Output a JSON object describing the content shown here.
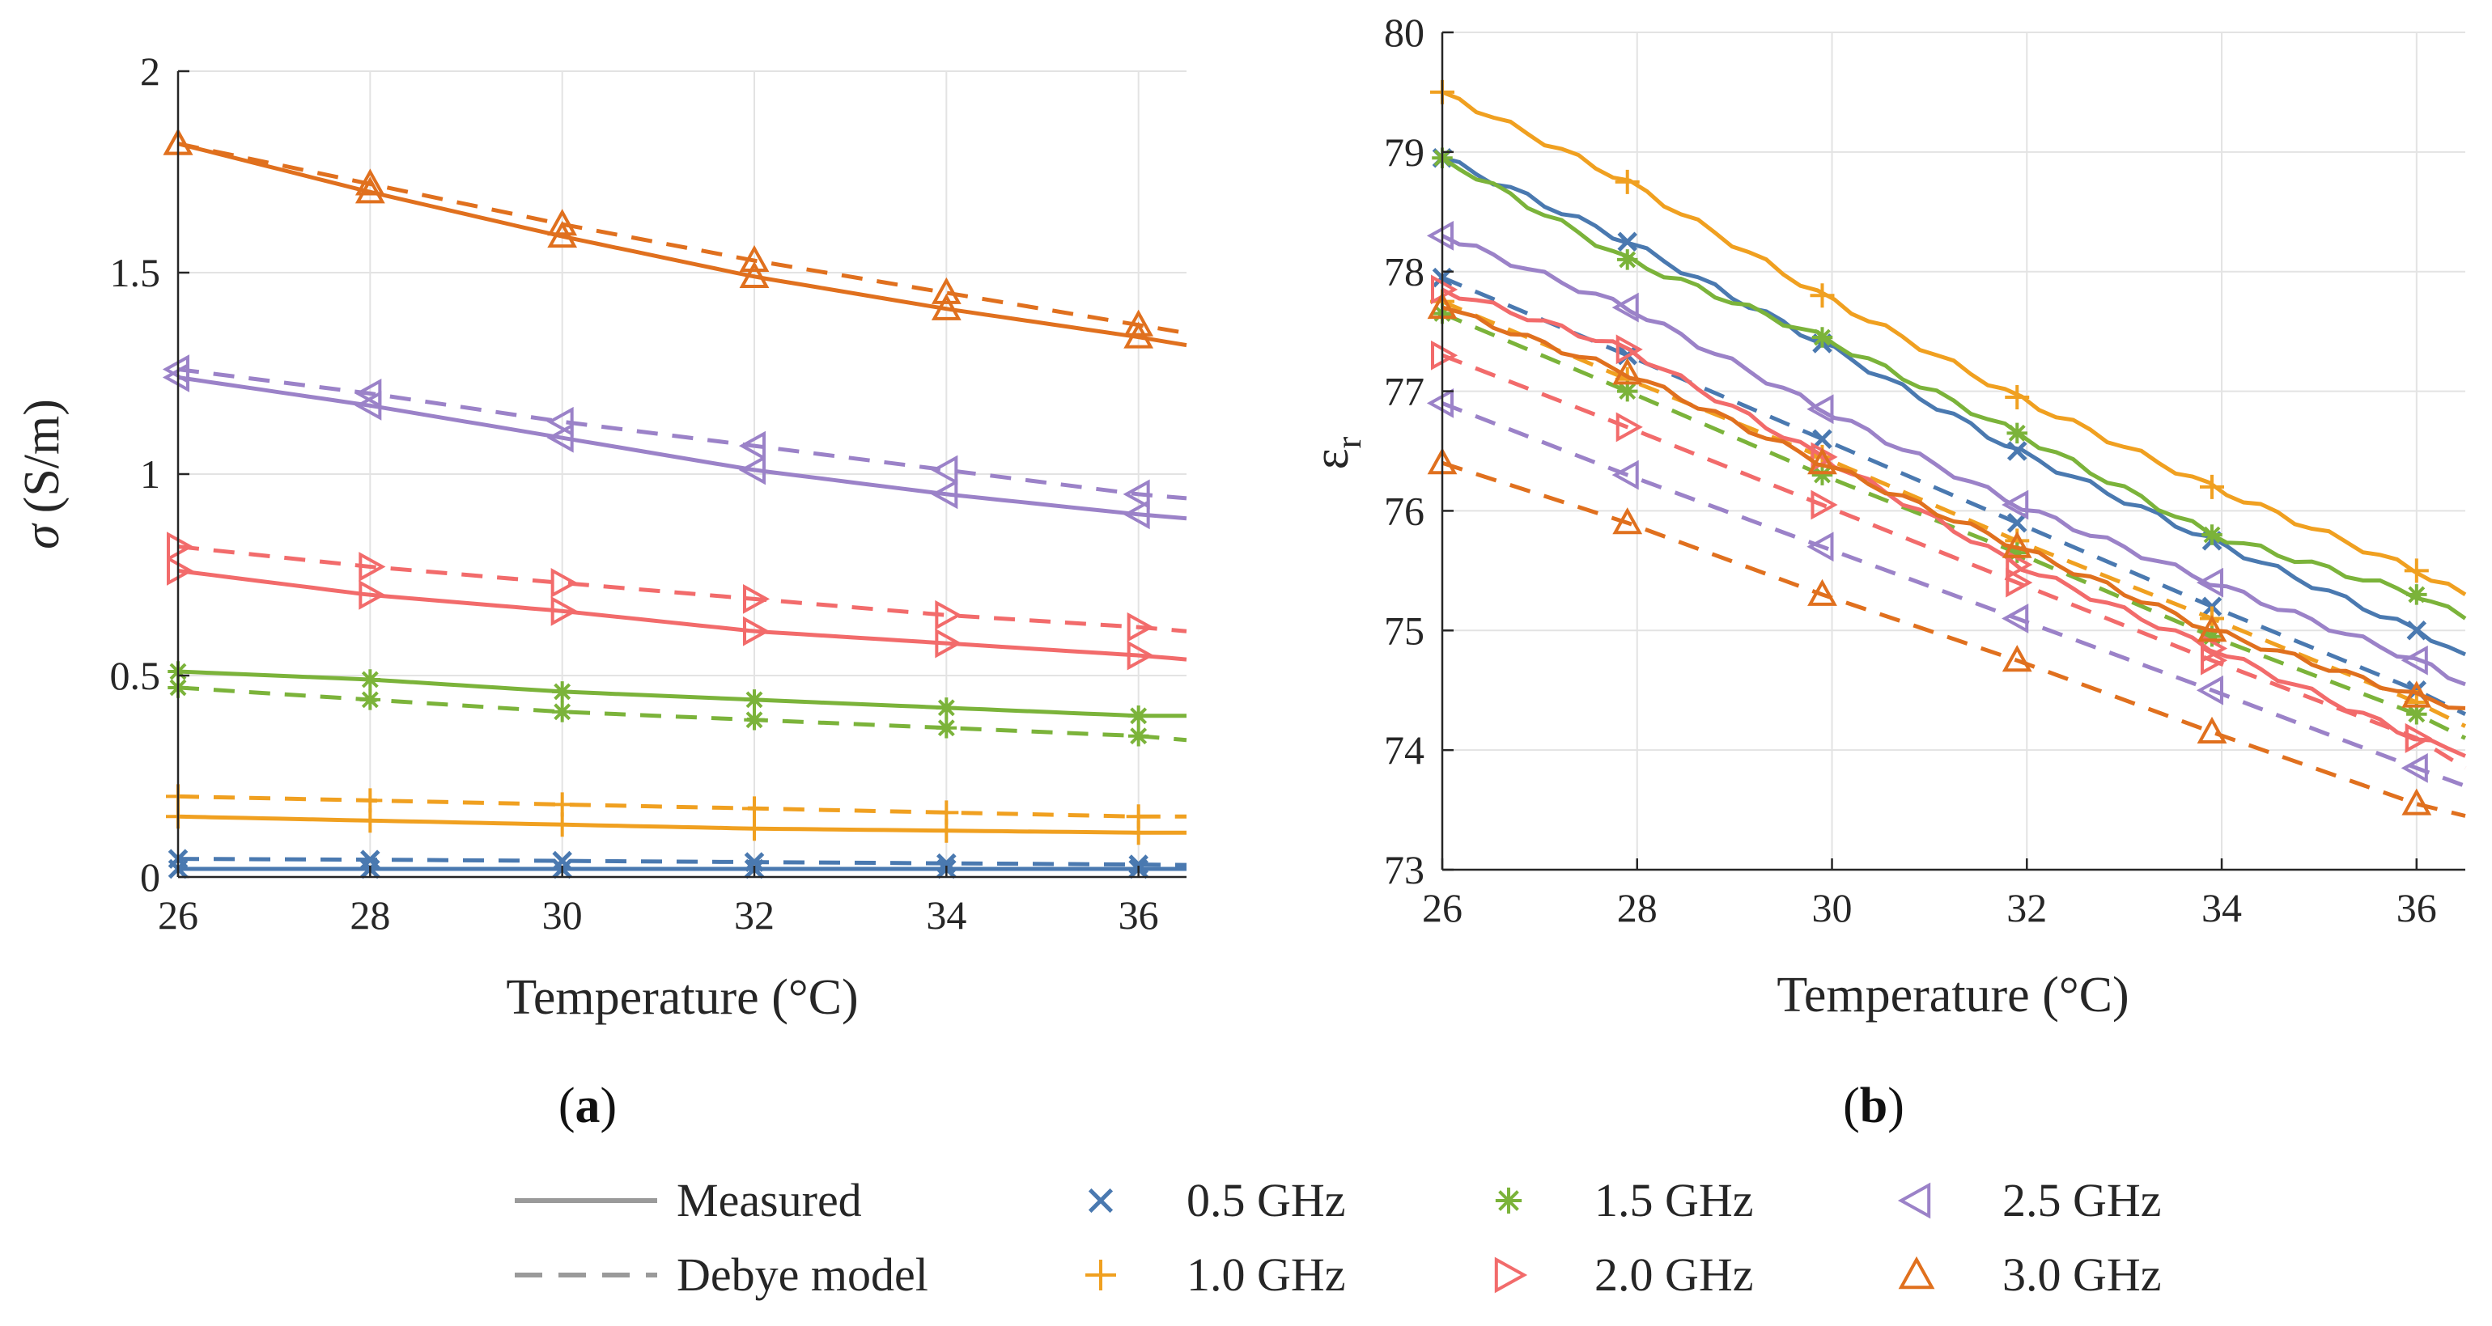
{
  "chart_data": [
    {
      "type": "line",
      "panel_label": "(a)",
      "panel_label_letter": "a",
      "xlabel": "Temperature (°C)",
      "ylabel_symbol": "σ",
      "ylabel_unit": "(S/m)",
      "xlim": [
        26,
        36.5
      ],
      "ylim": [
        0,
        2
      ],
      "xticks": [
        26,
        28,
        30,
        32,
        34,
        36
      ],
      "yticks": [
        0,
        0.5,
        1,
        1.5,
        2
      ],
      "ytick_labels": [
        "0",
        "0.5",
        "1",
        "1.5",
        "2"
      ],
      "grid": true,
      "marker_x": [
        26,
        28,
        30,
        32,
        34,
        36
      ],
      "series": [
        {
          "name": "0.5 GHz",
          "measured": {
            "x": [
              26,
              36.5
            ],
            "y": [
              0.02,
              0.02
            ]
          },
          "debye": {
            "x": [
              26,
              36.5
            ],
            "y": [
              0.045,
              0.03
            ]
          },
          "marker_measured": [
            0.02,
            0.02,
            0.02,
            0.02,
            0.02,
            0.02
          ],
          "marker_debye": [
            0.045,
            0.043,
            0.04,
            0.037,
            0.034,
            0.031
          ]
        },
        {
          "name": "1.0 GHz",
          "measured": {
            "x": [
              26,
              36.5
            ],
            "y": [
              0.15,
              0.11
            ]
          },
          "debye": {
            "x": [
              26,
              36.5
            ],
            "y": [
              0.2,
              0.15
            ]
          },
          "marker_measured": [
            0.15,
            0.14,
            0.13,
            0.12,
            0.115,
            0.11
          ],
          "marker_debye": [
            0.2,
            0.19,
            0.18,
            0.17,
            0.16,
            0.15
          ]
        },
        {
          "name": "1.5 GHz",
          "measured": {
            "x": [
              26,
              36.5
            ],
            "y": [
              0.51,
              0.4
            ]
          },
          "debye": {
            "x": [
              26,
              36.5
            ],
            "y": [
              0.47,
              0.34
            ]
          },
          "marker_measured": [
            0.51,
            0.49,
            0.46,
            0.44,
            0.42,
            0.4
          ],
          "marker_debye": [
            0.47,
            0.44,
            0.41,
            0.39,
            0.37,
            0.35
          ]
        },
        {
          "name": "2.0 GHz",
          "measured": {
            "x": [
              26,
              36.5
            ],
            "y": [
              0.76,
              0.54
            ]
          },
          "debye": {
            "x": [
              26,
              36.5
            ],
            "y": [
              0.82,
              0.61
            ]
          },
          "marker_measured": [
            0.76,
            0.7,
            0.66,
            0.61,
            0.58,
            0.55
          ],
          "marker_debye": [
            0.82,
            0.77,
            0.73,
            0.69,
            0.65,
            0.62
          ]
        },
        {
          "name": "2.5 GHz",
          "measured": {
            "x": [
              26,
              36.5
            ],
            "y": [
              1.24,
              0.89
            ]
          },
          "debye": {
            "x": [
              26,
              36.5
            ],
            "y": [
              1.26,
              0.94
            ]
          },
          "marker_measured": [
            1.24,
            1.17,
            1.09,
            1.01,
            0.95,
            0.9
          ],
          "marker_debye": [
            1.26,
            1.2,
            1.13,
            1.07,
            1.01,
            0.95
          ]
        },
        {
          "name": "3.0 GHz",
          "measured": {
            "x": [
              26,
              36.5
            ],
            "y": [
              1.82,
              1.32
            ]
          },
          "debye": {
            "x": [
              26,
              36.5
            ],
            "y": [
              1.82,
              1.35
            ]
          },
          "marker_measured": [
            1.82,
            1.7,
            1.59,
            1.49,
            1.41,
            1.34
          ],
          "marker_debye": [
            1.82,
            1.72,
            1.62,
            1.53,
            1.45,
            1.37
          ]
        }
      ]
    },
    {
      "type": "line",
      "panel_label": "(b)",
      "panel_label_letter": "b",
      "xlabel": "Temperature (°C)",
      "ylabel_symbol": "ε",
      "ylabel_subscript": "r",
      "xlim": [
        26,
        36.5
      ],
      "ylim": [
        73,
        80
      ],
      "xticks": [
        26,
        28,
        30,
        32,
        34,
        36
      ],
      "yticks": [
        73,
        74,
        75,
        76,
        77,
        78,
        79,
        80
      ],
      "ytick_labels": [
        "73",
        "74",
        "75",
        "76",
        "77",
        "78",
        "79",
        "80"
      ],
      "grid": true,
      "marker_x": [
        26,
        27.9,
        29.9,
        31.9,
        33.9,
        36
      ],
      "series": [
        {
          "name": "0.5 GHz",
          "measured": {
            "x": [
              26,
              36.5
            ],
            "y": [
              78.95,
              74.8
            ]
          },
          "debye": {
            "x": [
              26,
              36.5
            ],
            "y": [
              77.95,
              74.3
            ]
          },
          "marker_measured": [
            78.95,
            78.25,
            77.4,
            76.5,
            75.75,
            75.0
          ],
          "marker_debye": [
            77.95,
            77.3,
            76.6,
            75.9,
            75.2,
            74.5
          ]
        },
        {
          "name": "1.0 GHz",
          "measured": {
            "x": [
              26,
              36.5
            ],
            "y": [
              79.5,
              75.3
            ]
          },
          "debye": {
            "x": [
              26,
              36.5
            ],
            "y": [
              77.75,
              74.2
            ]
          },
          "marker_measured": [
            79.5,
            78.75,
            77.8,
            76.95,
            76.2,
            75.5
          ],
          "marker_debye": [
            77.75,
            77.1,
            76.45,
            75.75,
            75.1,
            74.4
          ]
        },
        {
          "name": "1.5 GHz",
          "measured": {
            "x": [
              26,
              36.5
            ],
            "y": [
              78.95,
              75.1
            ]
          },
          "debye": {
            "x": [
              26,
              36.5
            ],
            "y": [
              77.65,
              74.1
            ]
          },
          "marker_measured": [
            78.95,
            78.1,
            77.45,
            76.65,
            75.8,
            75.3
          ],
          "marker_debye": [
            77.65,
            77.0,
            76.3,
            75.65,
            74.95,
            74.3
          ]
        },
        {
          "name": "2.0 GHz",
          "measured": {
            "x": [
              26,
              36.5
            ],
            "y": [
              77.85,
              73.95
            ]
          },
          "debye": {
            "x": [
              26,
              36.5
            ],
            "y": [
              77.3,
              73.85
            ]
          },
          "marker_measured": [
            77.85,
            77.35,
            76.45,
            75.55,
            74.85,
            74.1
          ],
          "marker_debye": [
            77.3,
            76.7,
            76.05,
            75.4,
            74.75,
            74.1
          ]
        },
        {
          "name": "2.5 GHz",
          "measured": {
            "x": [
              26,
              36.5
            ],
            "y": [
              78.3,
              74.55
            ]
          },
          "debye": {
            "x": [
              26,
              36.5
            ],
            "y": [
              76.9,
              73.7
            ]
          },
          "marker_measured": [
            78.3,
            77.7,
            76.85,
            76.05,
            75.4,
            74.75
          ],
          "marker_debye": [
            76.9,
            76.3,
            75.7,
            75.1,
            74.5,
            73.85
          ]
        },
        {
          "name": "3.0 GHz",
          "measured": {
            "x": [
              26,
              36.5
            ],
            "y": [
              77.7,
              74.35
            ]
          },
          "debye": {
            "x": [
              26,
              36.5
            ],
            "y": [
              76.4,
              73.45
            ]
          },
          "marker_measured": [
            77.7,
            77.15,
            76.4,
            75.7,
            75.0,
            74.45
          ],
          "marker_debye": [
            76.4,
            75.9,
            75.3,
            74.75,
            74.15,
            73.55
          ]
        }
      ]
    }
  ],
  "legend": {
    "line_styles": [
      {
        "label": "Measured",
        "style": "solid"
      },
      {
        "label": "Debye model",
        "style": "dashed"
      }
    ],
    "frequencies": [
      {
        "label": "0.5 GHz",
        "marker": "x"
      },
      {
        "label": "1.0 GHz",
        "marker": "plus"
      },
      {
        "label": "1.5 GHz",
        "marker": "asterisk"
      },
      {
        "label": "2.0 GHz",
        "marker": "triangle-right"
      },
      {
        "label": "2.5 GHz",
        "marker": "triangle-left"
      },
      {
        "label": "3.0 GHz",
        "marker": "triangle-up"
      }
    ]
  },
  "colors": {
    "0.5 GHz": "#4a79b0",
    "1.0 GHz": "#f0a020",
    "1.5 GHz": "#7bb33a",
    "2.0 GHz": "#f26b6b",
    "2.5 GHz": "#9b82c8",
    "3.0 GHz": "#e0701e",
    "legend_line": "#9a9a9a",
    "axis": "#262626",
    "grid": "#e3e3e3"
  }
}
